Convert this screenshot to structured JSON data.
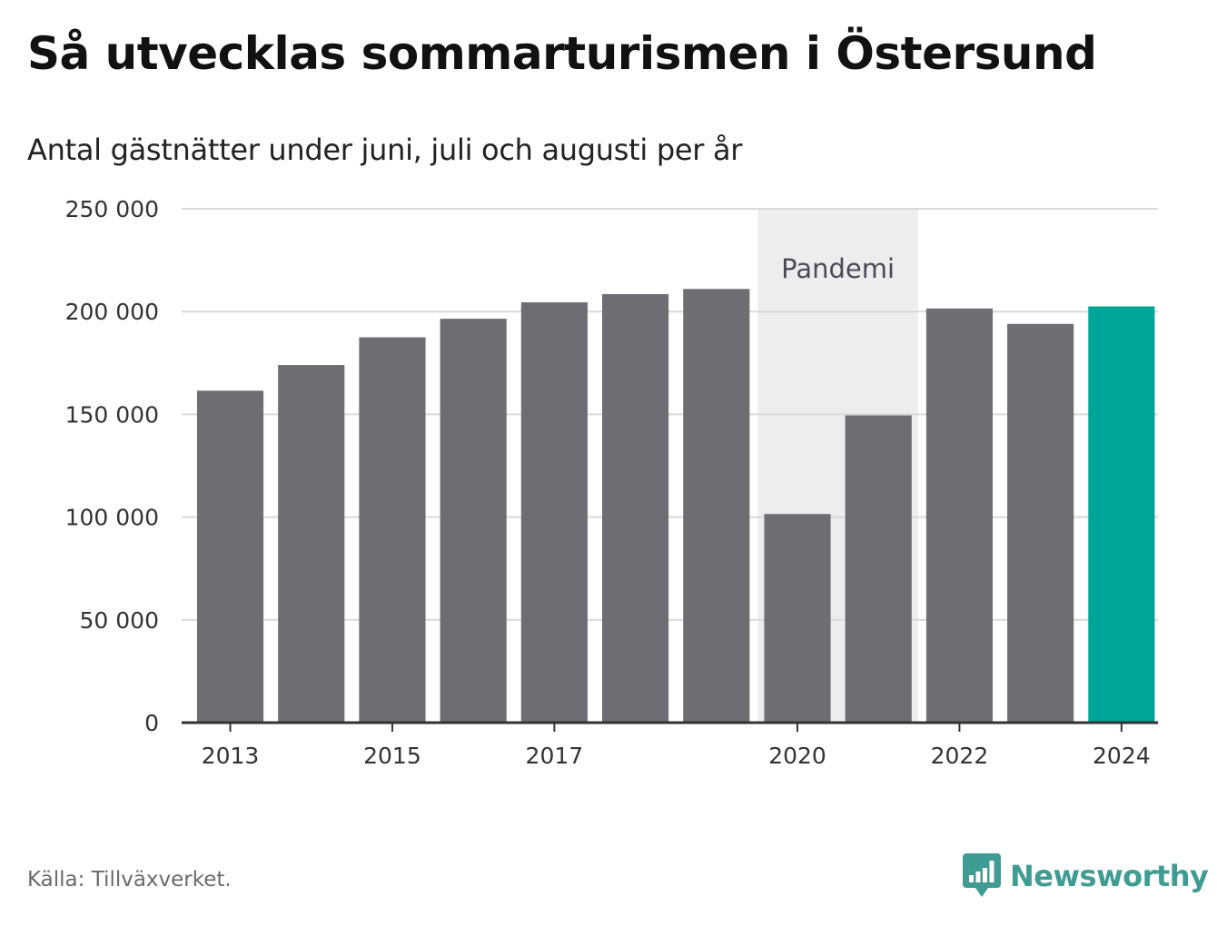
{
  "title": "Så utvecklas sommarturismen i Östersund",
  "subtitle": "Antal gästnätter under juni, juli och augusti per år",
  "source": "Källa: Tillväxverket.",
  "brand": {
    "name": "Newsworthy",
    "icon": "newsworthy-logo-icon",
    "color": "#3f9c93"
  },
  "chart_data": {
    "type": "bar",
    "categories": [
      "2013",
      "2014",
      "2015",
      "2016",
      "2017",
      "2018",
      "2019",
      "2020",
      "2021",
      "2022",
      "2023",
      "2024"
    ],
    "values": [
      161500,
      174000,
      187500,
      196500,
      204500,
      208500,
      211000,
      101500,
      149500,
      201500,
      194000,
      202500
    ],
    "x_tick_labels": [
      "2013",
      "2015",
      "2017",
      "2020",
      "2022",
      "2024"
    ],
    "y_ticks": [
      0,
      50000,
      100000,
      150000,
      200000,
      250000
    ],
    "y_tick_labels": [
      "0",
      "50 000",
      "100 000",
      "150 000",
      "200 000",
      "250 000"
    ],
    "ylim": [
      0,
      250000
    ],
    "grid": true,
    "bar_color": "#6e6d74",
    "highlight": {
      "category": "2024",
      "color": "#00a599"
    },
    "annotation": {
      "label": "Pandemi",
      "from": "2020",
      "to": "2021",
      "color": "#ededed"
    },
    "xlabel": "",
    "ylabel": ""
  }
}
